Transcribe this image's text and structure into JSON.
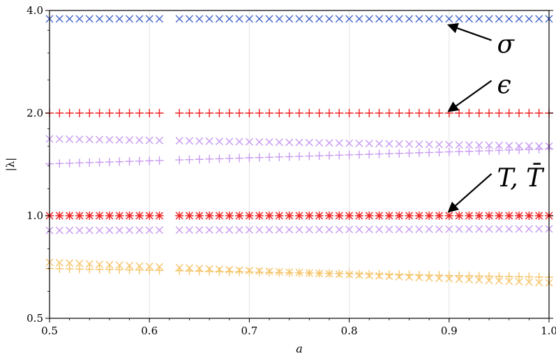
{
  "chart_data": {
    "type": "scatter",
    "title": "",
    "xlabel": "a",
    "ylabel": "|λ|",
    "xlim": [
      0.5,
      1.0
    ],
    "ylim": [
      0.5,
      4.0
    ],
    "yscale": "log",
    "grid": "vertical-only",
    "x_ticks": [
      {
        "value": 0.5,
        "label": "0.5"
      },
      {
        "value": 0.6,
        "label": "0.6"
      },
      {
        "value": 0.7,
        "label": "0.7"
      },
      {
        "value": 0.8,
        "label": "0.8"
      },
      {
        "value": 0.9,
        "label": "0.9"
      },
      {
        "value": 1.0,
        "label": "1.0"
      }
    ],
    "y_ticks": [
      {
        "value": 0.5,
        "label": "0.5"
      },
      {
        "value": 1.0,
        "label": "1.0"
      },
      {
        "value": 2.0,
        "label": "2.0"
      },
      {
        "value": 4.0,
        "label": "4.0"
      }
    ],
    "x_step": 0.01,
    "gap_x": [
      0.62
    ],
    "series": [
      {
        "marker": "x",
        "color": "#4466cc",
        "y_start": 3.78,
        "y_end": 3.78
      },
      {
        "marker": "+",
        "color": "#ee2222",
        "y_start": 2.0,
        "y_end": 2.0
      },
      {
        "marker": "x",
        "color": "#ee2222",
        "y_start": 1.0,
        "y_end": 1.0
      },
      {
        "marker": "+",
        "color": "#ee2222",
        "y_start": 1.0,
        "y_end": 1.0
      },
      {
        "marker": "x",
        "color": "#c79af0",
        "y_start": 1.68,
        "y_end": 1.6
      },
      {
        "marker": "+",
        "color": "#c79af0",
        "y_start": 1.42,
        "y_end": 1.57
      },
      {
        "marker": "x",
        "color": "#c79af0",
        "y_start": 0.905,
        "y_end": 0.915
      },
      {
        "marker": "x",
        "color": "#f5c46a",
        "y_start": 0.73,
        "y_end": 0.635
      },
      {
        "marker": "+",
        "color": "#f5c46a",
        "y_start": 0.7,
        "y_end": 0.66
      }
    ],
    "annotations": [
      {
        "text": "σ",
        "x": 0.948,
        "y": 3.18,
        "arrow_to": [
          0.9,
          3.62
        ]
      },
      {
        "text": "ϵ",
        "x": 0.948,
        "y": 2.42,
        "arrow_to": [
          0.9,
          2.03
        ]
      },
      {
        "text": "T, T̄",
        "x": 0.948,
        "y": 1.29,
        "arrow_to": [
          0.9,
          1.03
        ]
      }
    ]
  }
}
